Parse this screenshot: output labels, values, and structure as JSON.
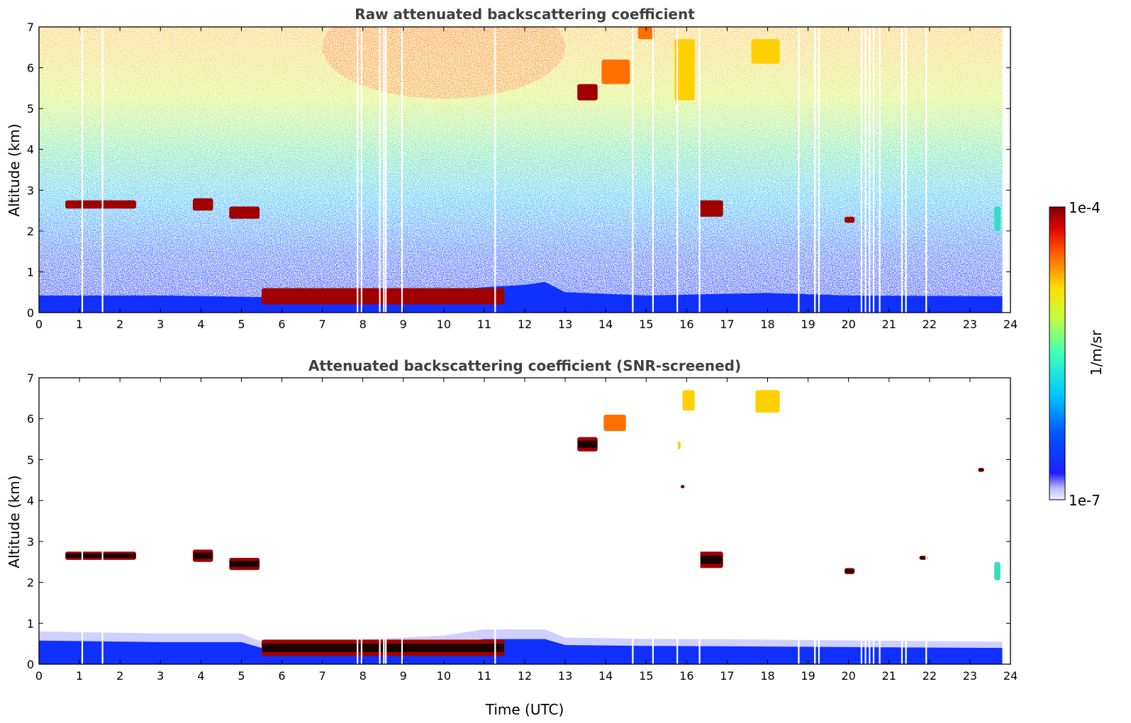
{
  "chart_data": [
    {
      "type": "heatmap",
      "title": "Raw attenuated backscattering coefficient",
      "xlabel": "",
      "ylabel": "Altitude (km)",
      "xlim": [
        0,
        24
      ],
      "ylim": [
        0,
        7
      ],
      "xticks": [
        "0",
        "1",
        "2",
        "3",
        "4",
        "5",
        "6",
        "7",
        "8",
        "9",
        "10",
        "11",
        "12",
        "13",
        "14",
        "15",
        "16",
        "17",
        "18",
        "19",
        "20",
        "21",
        "22",
        "23",
        "24"
      ],
      "yticks": [
        "0",
        "1",
        "2",
        "3",
        "4",
        "5",
        "6",
        "7"
      ],
      "noise_field": "dense speckle: blue near ground, green mid-levels, yellow-orange aloft (strongest 7-13 UTC)",
      "boundary_layer": [
        [
          0,
          0.42
        ],
        [
          3,
          0.42
        ],
        [
          5.5,
          0.38
        ],
        [
          7.5,
          0.45
        ],
        [
          9,
          0.48
        ],
        [
          10,
          0.55
        ],
        [
          11,
          0.62
        ],
        [
          12,
          0.68
        ],
        [
          12.5,
          0.75
        ],
        [
          13,
          0.5
        ],
        [
          15,
          0.42
        ],
        [
          18,
          0.48
        ],
        [
          20,
          0.42
        ],
        [
          23.8,
          0.4
        ]
      ],
      "features": [
        {
          "x0": 0.65,
          "x1": 2.4,
          "y0": 2.55,
          "y1": 2.75,
          "intensity": "high"
        },
        {
          "x0": 3.8,
          "x1": 4.3,
          "y0": 2.5,
          "y1": 2.8,
          "intensity": "high"
        },
        {
          "x0": 4.7,
          "x1": 5.45,
          "y0": 2.3,
          "y1": 2.6,
          "intensity": "high"
        },
        {
          "x0": 16.3,
          "x1": 16.9,
          "y0": 2.35,
          "y1": 2.75,
          "intensity": "high"
        },
        {
          "x0": 19.9,
          "x1": 20.15,
          "y0": 2.2,
          "y1": 2.35,
          "intensity": "high"
        },
        {
          "x0": 13.3,
          "x1": 13.8,
          "y0": 5.2,
          "y1": 5.6,
          "intensity": "high"
        },
        {
          "x0": 13.9,
          "x1": 14.6,
          "y0": 5.6,
          "y1": 6.2,
          "intensity": "medium-high"
        },
        {
          "x0": 15.7,
          "x1": 16.2,
          "y0": 5.2,
          "y1": 6.7,
          "intensity": "medium"
        },
        {
          "x0": 17.6,
          "x1": 18.3,
          "y0": 6.1,
          "y1": 6.7,
          "intensity": "medium"
        },
        {
          "x0": 14.8,
          "x1": 15.2,
          "y0": 6.7,
          "y1": 7.0,
          "intensity": "medium-high"
        },
        {
          "x0": 23.6,
          "x1": 23.75,
          "y0": 2.0,
          "y1": 2.6,
          "intensity": "low-medium"
        },
        {
          "x0": 5.5,
          "x1": 11.5,
          "y0": 0.2,
          "y1": 0.6,
          "intensity": "high"
        }
      ],
      "gaps_utc": [
        1.05,
        1.55,
        7.85,
        7.95,
        8.4,
        8.5,
        8.55,
        8.95,
        11.25,
        14.65,
        15.15,
        15.75,
        16.3,
        18.75,
        19.15,
        19.25,
        20.3,
        20.4,
        20.5,
        20.6,
        20.75,
        21.3,
        21.4,
        21.9
      ],
      "data_end_utc": 23.8
    },
    {
      "type": "heatmap",
      "title": "Attenuated backscattering coefficient (SNR-screened)",
      "xlabel": "Time (UTC)",
      "ylabel": "Altitude (km)",
      "xlim": [
        0,
        24
      ],
      "ylim": [
        0,
        7
      ],
      "xticks": [
        "0",
        "1",
        "2",
        "3",
        "4",
        "5",
        "6",
        "7",
        "8",
        "9",
        "10",
        "11",
        "12",
        "13",
        "14",
        "15",
        "16",
        "17",
        "18",
        "19",
        "20",
        "21",
        "22",
        "23",
        "24"
      ],
      "yticks": [
        "0",
        "1",
        "2",
        "3",
        "4",
        "5",
        "6",
        "7"
      ],
      "noise_field": "screened out (white) above the boundary layer",
      "boundary_layer": [
        [
          0,
          0.8
        ],
        [
          3,
          0.75
        ],
        [
          5,
          0.75
        ],
        [
          5.5,
          0.55
        ],
        [
          7,
          0.55
        ],
        [
          8,
          0.6
        ],
        [
          10,
          0.7
        ],
        [
          11,
          0.85
        ],
        [
          12,
          0.85
        ],
        [
          12.5,
          0.85
        ],
        [
          13,
          0.65
        ],
        [
          15,
          0.62
        ],
        [
          18,
          0.6
        ],
        [
          20,
          0.58
        ],
        [
          23.8,
          0.55
        ]
      ],
      "features": [
        {
          "x0": 0.65,
          "x1": 2.4,
          "y0": 2.55,
          "y1": 2.75,
          "intensity": "high"
        },
        {
          "x0": 3.8,
          "x1": 4.3,
          "y0": 2.5,
          "y1": 2.8,
          "intensity": "high"
        },
        {
          "x0": 4.7,
          "x1": 5.45,
          "y0": 2.3,
          "y1": 2.6,
          "intensity": "high"
        },
        {
          "x0": 16.3,
          "x1": 16.9,
          "y0": 2.35,
          "y1": 2.75,
          "intensity": "high"
        },
        {
          "x0": 19.9,
          "x1": 20.15,
          "y0": 2.2,
          "y1": 2.35,
          "intensity": "high"
        },
        {
          "x0": 13.3,
          "x1": 13.8,
          "y0": 5.2,
          "y1": 5.55,
          "intensity": "high"
        },
        {
          "x0": 13.95,
          "x1": 14.5,
          "y0": 5.7,
          "y1": 6.1,
          "intensity": "medium-high"
        },
        {
          "x0": 15.75,
          "x1": 15.85,
          "y0": 5.25,
          "y1": 5.45,
          "intensity": "medium"
        },
        {
          "x0": 15.9,
          "x1": 16.2,
          "y0": 6.2,
          "y1": 6.7,
          "intensity": "medium"
        },
        {
          "x0": 17.7,
          "x1": 18.3,
          "y0": 6.15,
          "y1": 6.7,
          "intensity": "medium"
        },
        {
          "x0": 23.6,
          "x1": 23.75,
          "y0": 2.05,
          "y1": 2.5,
          "intensity": "low-medium"
        },
        {
          "x0": 15.85,
          "x1": 15.95,
          "y0": 4.3,
          "y1": 4.38,
          "intensity": "high"
        },
        {
          "x0": 23.2,
          "x1": 23.35,
          "y0": 4.7,
          "y1": 4.8,
          "intensity": "high"
        },
        {
          "x0": 21.75,
          "x1": 21.95,
          "y0": 2.55,
          "y1": 2.65,
          "intensity": "high"
        },
        {
          "x0": 5.5,
          "x1": 11.5,
          "y0": 0.2,
          "y1": 0.6,
          "intensity": "high"
        }
      ],
      "gaps_utc": [
        1.05,
        1.55,
        7.85,
        7.95,
        8.4,
        8.5,
        8.55,
        8.95,
        11.25,
        14.65,
        15.15,
        15.75,
        16.3,
        18.75,
        19.15,
        19.25,
        20.3,
        20.4,
        20.5,
        20.6,
        20.75,
        21.3,
        21.4,
        21.9
      ],
      "data_end_utc": 23.8
    }
  ],
  "colorbar": {
    "label": "1/m/sr",
    "max_label": "1e-4",
    "min_label": "1e-7",
    "colormap": "jet",
    "scale": "log",
    "range": [
      1e-07,
      0.0001
    ]
  }
}
